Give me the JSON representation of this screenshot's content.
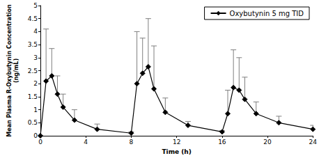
{
  "chart_data": {
    "type": "line",
    "x_label": "Time (h)",
    "y_label": "Mean Plasma R-Oxybutynin Concentration\n(ng/mL)",
    "xlim": [
      0,
      24
    ],
    "xticks": [
      0,
      4,
      8,
      12,
      16,
      20,
      24
    ],
    "ylim": [
      0,
      5
    ],
    "yticks": [
      0,
      0.5,
      1,
      1.5,
      2,
      2.5,
      3,
      3.5,
      4,
      4.5,
      5
    ],
    "grid": false,
    "legend": "upper right",
    "series": [
      {
        "name": "Oxybutynin 5 mg TID",
        "color": "#000000",
        "marker": "diamond",
        "line_style": "solid",
        "x": [
          0,
          0.5,
          1,
          1.5,
          2,
          3,
          5,
          8,
          8.5,
          9,
          9.5,
          10,
          11,
          13,
          16,
          16.5,
          17,
          17.5,
          18,
          19,
          21,
          24
        ],
        "values": [
          0,
          2.1,
          2.3,
          1.6,
          1.1,
          0.6,
          0.25,
          0.1,
          2.0,
          2.4,
          2.65,
          1.8,
          0.9,
          0.4,
          0.15,
          0.85,
          1.85,
          1.75,
          1.4,
          0.85,
          0.5,
          0.25
        ],
        "error": [
          0,
          2.0,
          1.05,
          0.7,
          0.5,
          0.4,
          0.2,
          0.05,
          2.0,
          1.35,
          1.85,
          1.65,
          0.55,
          0.15,
          0.05,
          0.9,
          1.45,
          1.25,
          0.85,
          0.45,
          0.25,
          0.15
        ]
      }
    ]
  }
}
